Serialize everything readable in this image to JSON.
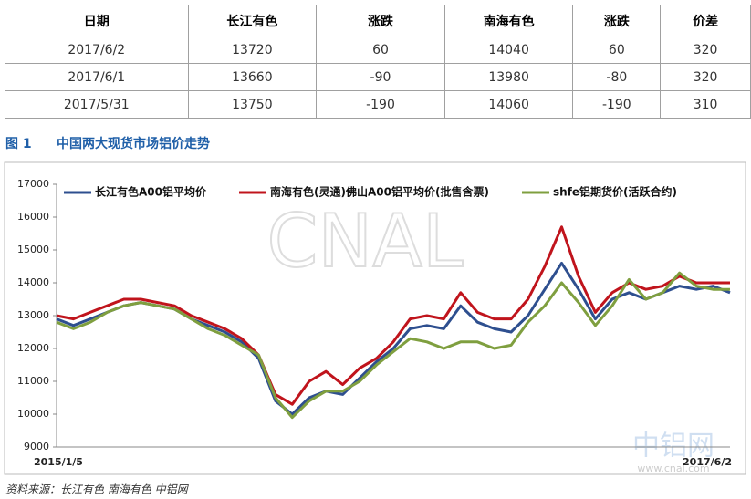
{
  "table": {
    "header": [
      "日期",
      "长江有色",
      "涨跌",
      "南海有色",
      "涨跌",
      "价差"
    ],
    "rows": [
      [
        "2017/6/2",
        "13720",
        "60",
        "14040",
        "60",
        "320"
      ],
      [
        "2017/6/1",
        "13660",
        "-90",
        "13980",
        "-80",
        "320"
      ],
      [
        "2017/5/31",
        "13750",
        "-190",
        "14060",
        "-190",
        "310"
      ]
    ]
  },
  "caption": {
    "label": "图 1",
    "title": "中国两大现货市场铝价走势"
  },
  "chart_data": {
    "type": "line",
    "categories": [
      "2015/1/5",
      null,
      null,
      null,
      null,
      null,
      null,
      null,
      null,
      null,
      null,
      null,
      null,
      null,
      null,
      null,
      null,
      null,
      null,
      null,
      null,
      null,
      null,
      null,
      null,
      null,
      null,
      null,
      null,
      null,
      null,
      null,
      null,
      null,
      null,
      null,
      null,
      null,
      null,
      null,
      "2017/6/2"
    ],
    "series": [
      {
        "name": "长江有色A00铝平均价",
        "color": "#2e4f8f",
        "values": [
          12900,
          12700,
          12900,
          13100,
          13300,
          13400,
          13300,
          13200,
          12900,
          12700,
          12500,
          12200,
          11700,
          10400,
          10000,
          10500,
          10700,
          10600,
          11100,
          11600,
          12000,
          12600,
          12700,
          12600,
          13300,
          12800,
          12600,
          12500,
          13000,
          13800,
          14600,
          13800,
          12900,
          13500,
          13700,
          13500,
          13700,
          13900,
          13800,
          13900,
          13700
        ]
      },
      {
        "name": "南海有色(灵通)佛山A00铝平均价(批售含票)",
        "color": "#c0141c",
        "values": [
          13000,
          12900,
          13100,
          13300,
          13500,
          13500,
          13400,
          13300,
          13000,
          12800,
          12600,
          12300,
          11800,
          10600,
          10300,
          11000,
          11300,
          10900,
          11400,
          11700,
          12200,
          12900,
          13000,
          12900,
          13700,
          13100,
          12900,
          12900,
          13500,
          14500,
          15700,
          14200,
          13100,
          13700,
          14000,
          13800,
          13900,
          14200,
          14000,
          14000,
          14000
        ]
      },
      {
        "name": "shfe铝期货价(活跃合约)",
        "color": "#7f9f3f",
        "values": [
          12800,
          12600,
          12800,
          13100,
          13300,
          13400,
          13300,
          13200,
          12900,
          12600,
          12400,
          12100,
          11800,
          10500,
          9900,
          10400,
          10700,
          10700,
          11000,
          11500,
          11900,
          12300,
          12200,
          12000,
          12200,
          12200,
          12000,
          12100,
          12800,
          13300,
          14000,
          13400,
          12700,
          13300,
          14100,
          13500,
          13700,
          14300,
          13900,
          13800,
          13800
        ]
      }
    ],
    "ylim": [
      9000,
      17000
    ],
    "yticks": [
      9000,
      10000,
      11000,
      12000,
      13000,
      14000,
      15000,
      16000,
      17000
    ],
    "legend": "top"
  },
  "source": "资料来源：长江有色    南海有色    中铝网",
  "watermarks": [
    "CNAL",
    "中铝网",
    "www.cnal.com"
  ]
}
